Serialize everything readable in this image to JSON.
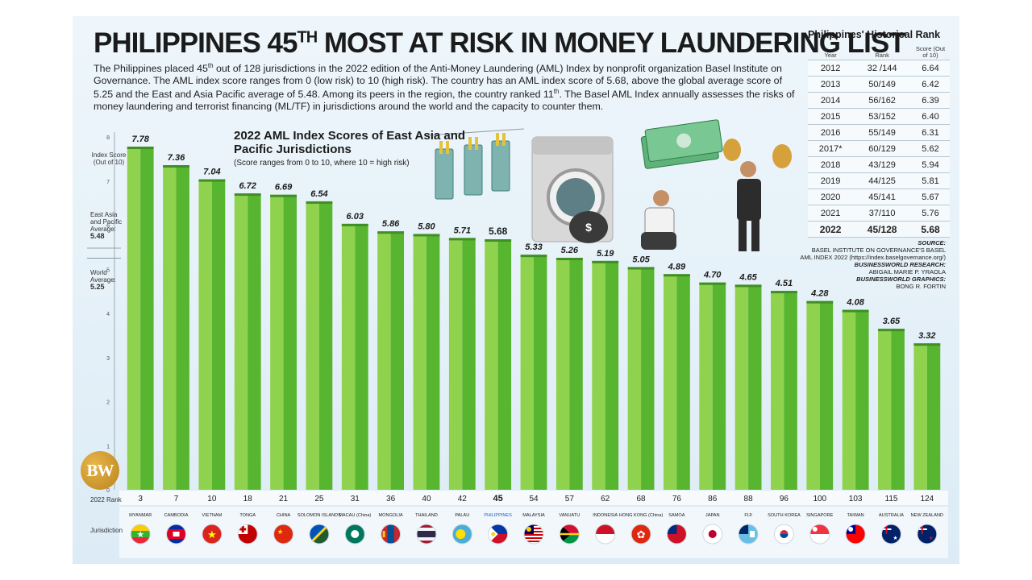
{
  "header": {
    "title_pre": "PHILIPPINES 45",
    "title_sup": "TH",
    "title_post": " MOST AT RISK IN MONEY LAUNDERING LIST",
    "intro": [
      "The Philippines placed 45",
      "th",
      " out of 128 jurisdictions in the 2022 edition of the Anti-Money Laundering (AML) Index by nonprofit organization Basel Institute on Governance. The AML index score ranges from 0 (low risk) to 10 (high risk). The country has an AML index score of 5.68, above the global average score of 5.25 and the East and Asia Pacific average of 5.48. Among its peers in the region, the country ranked 11",
      "th",
      ". The Basel AML Index annually assesses the risks of money laundering and terrorist financing (ML/TF) in jurisdictions around the world and the capacity to counter them."
    ]
  },
  "chart_data": {
    "type": "bar",
    "title": "2022 AML Index Scores of East Asia and Pacific Jurisdictions",
    "subtitle": "(Score ranges from 0 to 10, where 10 = high risk)",
    "ylabel": "Index Score (Out of 10)",
    "ylim": [
      0,
      8
    ],
    "yticks": [
      "0",
      "1",
      "2",
      "3",
      "4",
      "5",
      "6",
      "7",
      "8"
    ],
    "categories": [
      "MYANMAR",
      "CAMBODIA",
      "VIETNAM",
      "TONGA",
      "CHINA",
      "SOLOMON ISLANDS",
      "MACAU (China)",
      "MONGOLIA",
      "THAILAND",
      "PALAU",
      "PHILIPPINES",
      "MALAYSIA",
      "VANUATU",
      "INDONESIA",
      "HONG KONG (China)",
      "SAMOA",
      "JAPAN",
      "FIJI",
      "SOUTH KOREA",
      "SINGAPORE",
      "TAIWAN",
      "AUSTRALIA",
      "NEW ZEALAND"
    ],
    "values": [
      7.78,
      7.36,
      7.04,
      6.72,
      6.69,
      6.54,
      6.03,
      5.86,
      5.8,
      5.71,
      5.68,
      5.33,
      5.26,
      5.19,
      5.05,
      4.89,
      4.7,
      4.65,
      4.51,
      4.28,
      4.08,
      3.65,
      3.32
    ],
    "value_labels": [
      "7.78",
      "7.36",
      "7.04",
      "6.72",
      "6.69",
      "6.54",
      "6.03",
      "5.86",
      "5.80",
      "5.71",
      "5.68",
      "5.33",
      "5.26",
      "5.19",
      "5.05",
      "4.89",
      "4.70",
      "4.65",
      "4.51",
      "4.28",
      "4.08",
      "3.65",
      "3.32"
    ],
    "ranks": [
      "3",
      "7",
      "10",
      "18",
      "21",
      "25",
      "31",
      "36",
      "40",
      "42",
      "45",
      "54",
      "57",
      "62",
      "68",
      "76",
      "86",
      "88",
      "96",
      "100",
      "103",
      "115",
      "124"
    ],
    "highlight_index": 10,
    "rank_row_label": "2022 Rank",
    "jurisdiction_row_label": "Jurisdiction",
    "reference_lines": [
      {
        "label": "East Asia and Pacific Average:",
        "value_label": "5.48",
        "value": 5.48
      },
      {
        "label": "World Average:",
        "value_label": "5.25",
        "value": 5.25
      }
    ],
    "grid": false,
    "legend": "none",
    "colors": {
      "bar_light": "#8fd24d",
      "bar_dark": "#58b52f",
      "highlight_text": "#1f5fc4"
    }
  },
  "history": {
    "title": "Philippines' Historical Rank",
    "headers": [
      "Year",
      "Rank",
      "Score (Out of 10)"
    ],
    "rows": [
      [
        "2012",
        "32 /144",
        "6.64"
      ],
      [
        "2013",
        "50/149",
        "6.42"
      ],
      [
        "2014",
        "56/162",
        "6.39"
      ],
      [
        "2015",
        "53/152",
        "6.40"
      ],
      [
        "2016",
        "55/149",
        "6.31"
      ],
      [
        "2017*",
        "60/129",
        "5.62"
      ],
      [
        "2018",
        "43/129",
        "5.94"
      ],
      [
        "2019",
        "44/125",
        "5.81"
      ],
      [
        "2020",
        "45/141",
        "5.67"
      ],
      [
        "2021",
        "37/110",
        "5.76"
      ],
      [
        "2022",
        "45/128",
        "5.68"
      ]
    ]
  },
  "credits": {
    "source_h": "SOURCE:",
    "source_1": "BASEL INSTITUTE ON GOVERNANCE'S BASEL",
    "source_2": "AML INDEX 2022 (https://index.baselgovernance.org/)",
    "research_h": "BUSINESSWORLD RESEARCH:",
    "research": "ABIGAIL MARIE P. YRAOLA",
    "graphics_h": "BUSINESSWORLD GRAPHICS:",
    "graphics": "BONG R. FORTIN"
  },
  "logo": {
    "text": "BW"
  },
  "flags": [
    "myanmar-flag-icon",
    "cambodia-flag-icon",
    "vietnam-flag-icon",
    "tonga-flag-icon",
    "china-flag-icon",
    "solomon-islands-flag-icon",
    "macau-flag-icon",
    "mongolia-flag-icon",
    "thailand-flag-icon",
    "palau-flag-icon",
    "philippines-flag-icon",
    "malaysia-flag-icon",
    "vanuatu-flag-icon",
    "indonesia-flag-icon",
    "hong-kong-flag-icon",
    "samoa-flag-icon",
    "japan-flag-icon",
    "fiji-flag-icon",
    "south-korea-flag-icon",
    "singapore-flag-icon",
    "taiwan-flag-icon",
    "australia-flag-icon",
    "new-zealand-flag-icon"
  ]
}
